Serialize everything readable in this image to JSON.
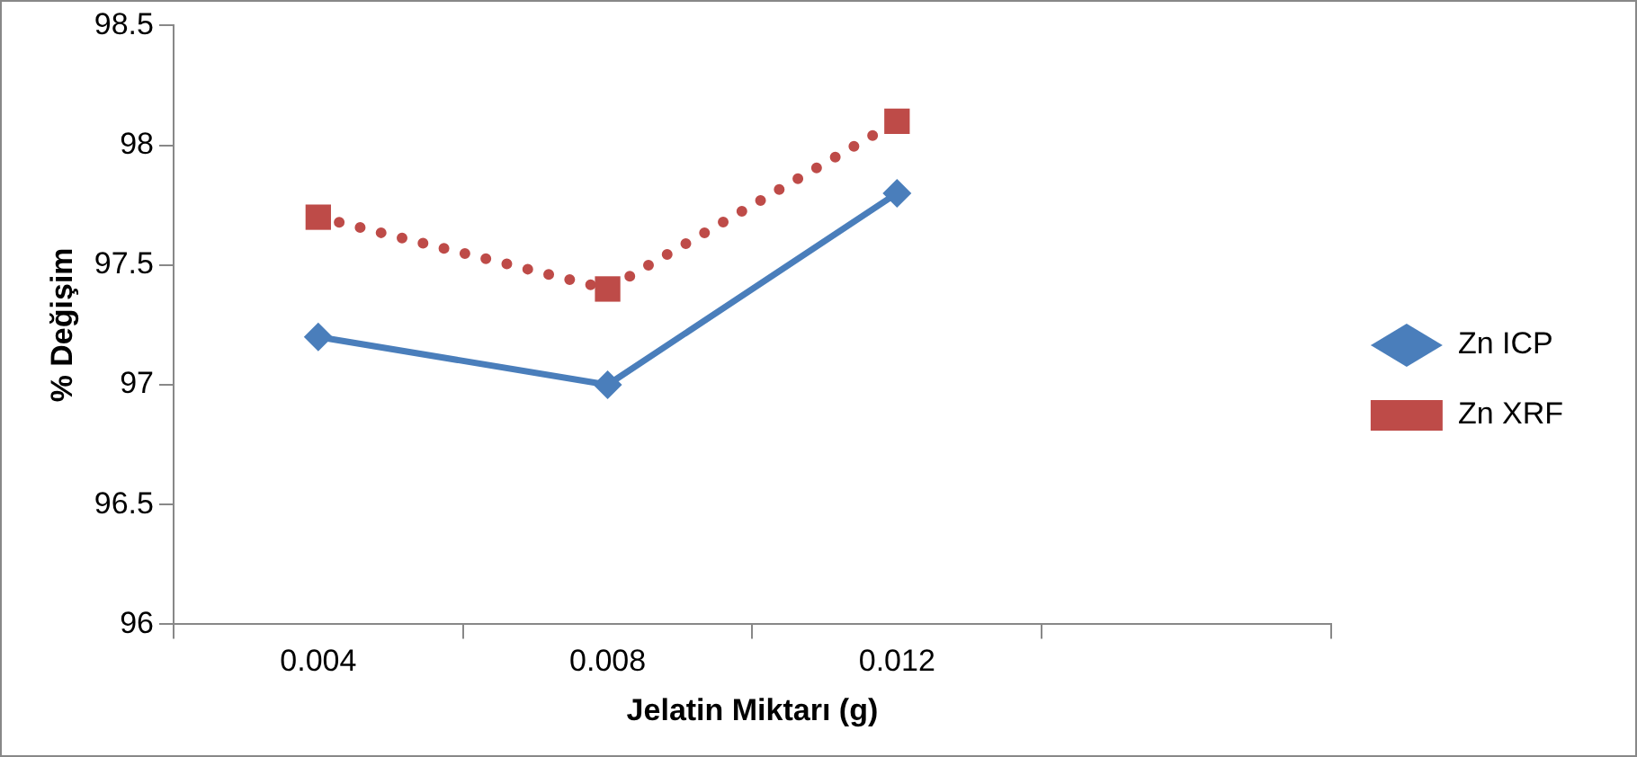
{
  "chart_data": {
    "type": "line",
    "xlabel": "Jelatin Miktarı (g)",
    "ylabel": "% Değişim",
    "categories": [
      "0.004",
      "0.008",
      "0.012",
      null
    ],
    "series": [
      {
        "name": "Zn ICP",
        "color": "#4a7ebb",
        "values": [
          97.2,
          97.0,
          97.8,
          null
        ],
        "marker": "diamond",
        "line_style": "solid"
      },
      {
        "name": "Zn XRF",
        "color": "#be4b48",
        "values": [
          97.7,
          97.4,
          98.1,
          null
        ],
        "marker": "square",
        "line_style": "dotted"
      }
    ],
    "ylim": [
      96,
      98.5
    ],
    "yticks": [
      96,
      96.5,
      97,
      97.5,
      98,
      98.5
    ],
    "grid": false,
    "legend": "right"
  }
}
